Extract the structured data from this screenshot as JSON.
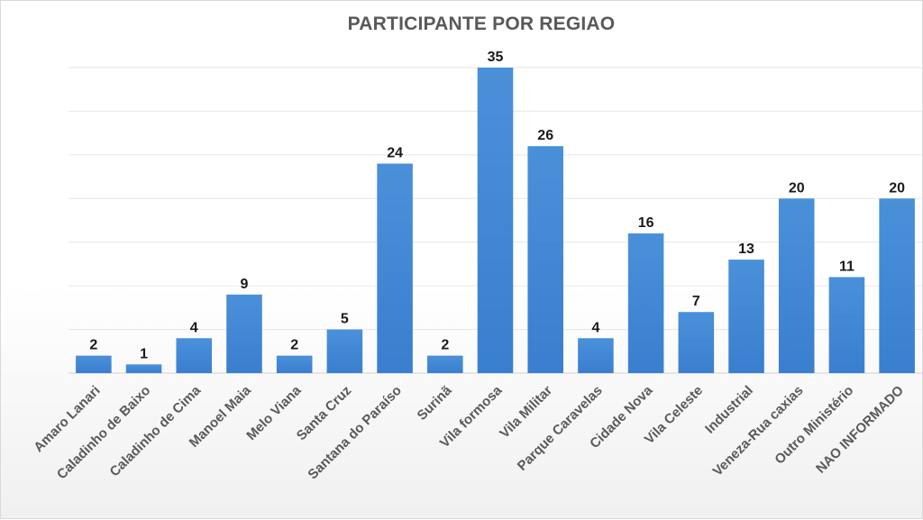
{
  "chart_data": {
    "type": "bar",
    "title": "PARTICIPANTE POR REGIAO",
    "categories": [
      "Amaro Lanari",
      "Caladinho de Baixo",
      "Caladinho de Cima",
      "Manoel Maia",
      "Melo Viana",
      "Santa Cruz",
      "Santana do Paraíso",
      "Surinã",
      "Vila formosa",
      "Vila Militar",
      "Parque Caravelas",
      "Cidade Nova",
      "Vila Celeste",
      "Industrial",
      "Veneza-Rua caxias",
      "Outro Ministério",
      "NAO INFORMADO"
    ],
    "values": [
      2,
      1,
      4,
      9,
      2,
      5,
      24,
      2,
      35,
      26,
      4,
      16,
      7,
      13,
      20,
      11,
      20
    ],
    "ylim": [
      0,
      35
    ],
    "grid": true,
    "bar_color": "#4a90d9",
    "bar_color_dark": "#3a7fcf",
    "label_color": "#595959"
  }
}
